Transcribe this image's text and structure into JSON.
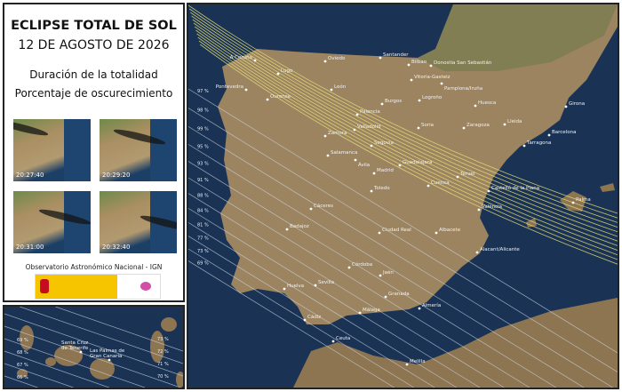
{
  "header": {
    "title": "ECLIPSE TOTAL DE SOL",
    "date": "12 DE AGOSTO DE 2026",
    "subtitle1": "Duración de la totalidad",
    "subtitle2": "Porcentaje de oscurecimiento"
  },
  "thumbnails": [
    {
      "time": "20:27:40"
    },
    {
      "time": "20:29:20"
    },
    {
      "time": "20:31:00"
    },
    {
      "time": "20:32:40"
    }
  ],
  "credit": "Observatorio Astronómico Nacional - IGN",
  "colors": {
    "sea": "#1a3354",
    "land": "#9c8460",
    "totality_lines": "#e6de7a",
    "coverage_lines": "#cfd8e6"
  },
  "cities": [
    "A Coruña",
    "Oviedo",
    "Santander",
    "Bilbao",
    "Donostia San Sebastián",
    "Lugo",
    "Pontevedra",
    "Ourense",
    "León",
    "Vitoria-Gasteiz",
    "Pamplona/Iruña",
    "Logroño",
    "Burgos",
    "Palencia",
    "Huesca",
    "Girona",
    "Zaragoza",
    "Lleida",
    "Soria",
    "Valladolid",
    "Barcelona",
    "Zamora",
    "Tarragona",
    "Segovia",
    "Salamanca",
    "Ávila",
    "Guadalajara",
    "Madrid",
    "Teruel",
    "Toledo",
    "Cuenca",
    "Castelló de la Plana",
    "Palma",
    "València",
    "Cáceres",
    "Ciudad Real",
    "Albacete",
    "Badajoz",
    "Alacant/Alicante",
    "Córdoba",
    "Jaén",
    "Huelva",
    "Sevilla",
    "Granada",
    "Almería",
    "Málaga",
    "Cádiz",
    "Ceuta",
    "Melilla"
  ],
  "canary_cities": [
    "Santa Cruz de Tenerife",
    "Las Palmas de Gran Canaria"
  ],
  "coverage_labels": [
    "97 %",
    "98 %",
    "99 %",
    "95 %",
    "93 %",
    "91 %",
    "88 %",
    "84 %",
    "81 %",
    "77 %",
    "73 %",
    "69 %"
  ],
  "canary_labels": [
    "73 %",
    "72 %",
    "71 %",
    "70 %",
    "69 %",
    "68 %",
    "67 %",
    "66 %"
  ]
}
